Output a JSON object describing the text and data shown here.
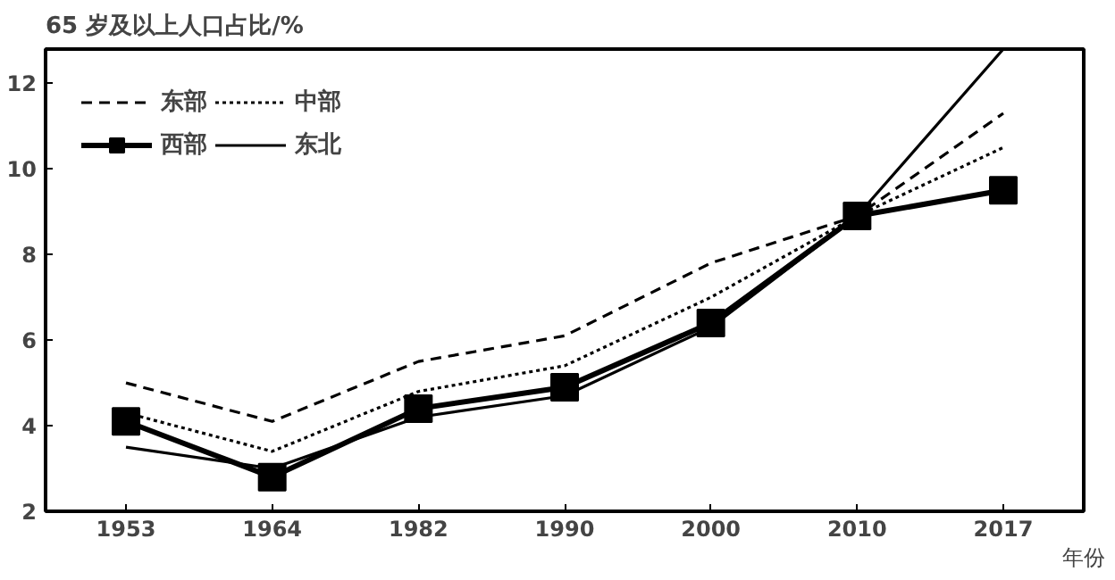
{
  "chart_data": {
    "type": "line",
    "title": "65 岁及以上人口占比/%",
    "xlabel": "年份",
    "categories": [
      "1953",
      "1964",
      "1982",
      "1990",
      "2000",
      "2010",
      "2017"
    ],
    "series": [
      {
        "name": "东部",
        "color": "#000000",
        "line_style": "dashed",
        "marker": "none",
        "values": [
          5.0,
          4.1,
          5.5,
          6.1,
          7.8,
          8.9,
          11.3
        ]
      },
      {
        "name": "中部",
        "color": "#000000",
        "line_style": "dotted",
        "marker": "none",
        "values": [
          4.3,
          3.4,
          4.8,
          5.4,
          7.0,
          8.9,
          10.5
        ]
      },
      {
        "name": "西部",
        "color": "#000000",
        "line_style": "solid",
        "marker": "square",
        "values": [
          4.1,
          2.8,
          4.4,
          4.9,
          6.4,
          8.9,
          9.5
        ]
      },
      {
        "name": "东北",
        "color": "#000000",
        "line_style": "solid",
        "marker": "none",
        "values": [
          3.5,
          3.0,
          4.2,
          4.7,
          6.3,
          8.9,
          12.8
        ]
      }
    ],
    "ylim": [
      2,
      12.8
    ],
    "yticks": [
      2,
      4,
      6,
      8,
      10,
      12
    ],
    "grid": false,
    "legend": "top left"
  }
}
